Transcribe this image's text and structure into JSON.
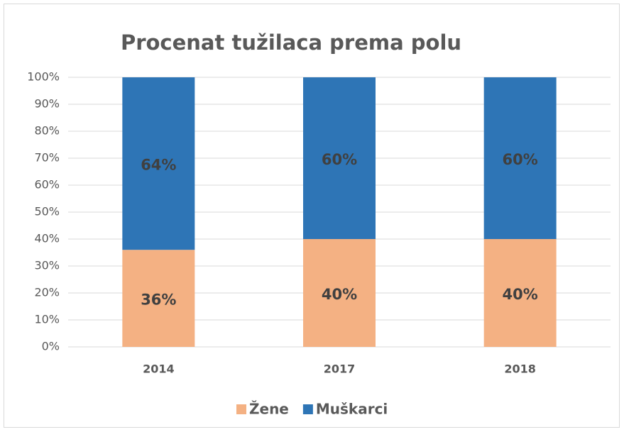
{
  "chart_data": {
    "type": "stacked_bar",
    "title": "Procenat tužilaca prema polu",
    "categories": [
      "2014",
      "2017",
      "2018"
    ],
    "series": [
      {
        "name": "Žene",
        "color": "#f4b183",
        "values": [
          36,
          40,
          40
        ],
        "value_labels": [
          "36%",
          "40%",
          "40%"
        ]
      },
      {
        "name": "Muškarci",
        "color": "#2e75b6",
        "values": [
          64,
          60,
          60
        ],
        "value_labels": [
          "64%",
          "60%",
          "60%"
        ]
      }
    ],
    "ylim": [
      0,
      100
    ],
    "yticks": [
      {
        "value": 0,
        "label": "0%"
      },
      {
        "value": 10,
        "label": "10%"
      },
      {
        "value": 20,
        "label": "20%"
      },
      {
        "value": 30,
        "label": "30%"
      },
      {
        "value": 40,
        "label": "40%"
      },
      {
        "value": 50,
        "label": "50%"
      },
      {
        "value": 60,
        "label": "60%"
      },
      {
        "value": 70,
        "label": "70%"
      },
      {
        "value": 80,
        "label": "80%"
      },
      {
        "value": 90,
        "label": "90%"
      },
      {
        "value": 100,
        "label": "100%"
      }
    ],
    "grid": true,
    "legend": "bottom"
  }
}
